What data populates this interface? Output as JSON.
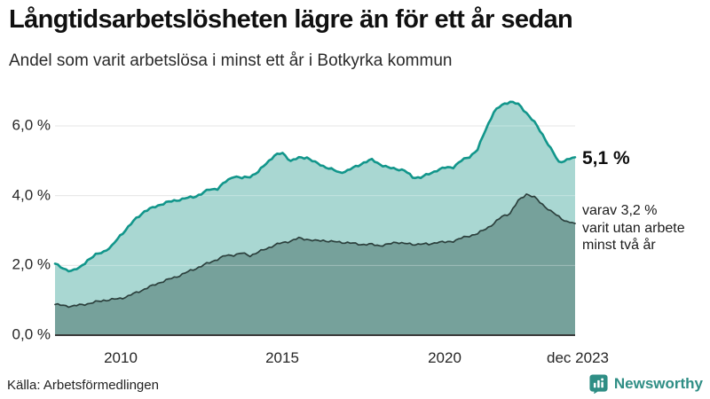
{
  "header": {
    "title": "Långtidsarbetslösheten lägre än för ett år sedan",
    "subtitle": "Andel som varit arbetslösa i minst ett år i Botkyrka kommun"
  },
  "annotations": {
    "latest_value": "5,1 %",
    "secondary_line1": "varav 3,2 %",
    "secondary_line2": "varit utan arbete",
    "secondary_line3": "minst två år"
  },
  "footer": {
    "source": "Källa: Arbetsförmedlingen",
    "brand": "Newsworthy"
  },
  "colors": {
    "total_line": "#12968B",
    "total_fill": "#A9D7D2",
    "two_year_line": "#2C403D",
    "two_year_fill": "#76A19B",
    "gridline": "#DBDBDB",
    "axis": "#3A3A3A",
    "brand": "#2F8E85"
  },
  "chart_data": {
    "type": "area",
    "title": "Långtidsarbetslösheten lägre än för ett år sedan",
    "subtitle": "Andel som varit arbetslösa i minst ett år i Botkyrka kommun",
    "unit": "%",
    "grid": true,
    "x_start": 2008.0,
    "x_end": 2024.0,
    "x_resolution": "quarterly",
    "ylim": [
      0,
      7
    ],
    "yticks": [
      {
        "value": 0,
        "label": "0,0 %"
      },
      {
        "value": 2,
        "label": "2,0 %"
      },
      {
        "value": 4,
        "label": "4,0 %"
      },
      {
        "value": 6,
        "label": "6,0 %"
      }
    ],
    "xticks": [
      {
        "t": 2010.0,
        "label": "2010"
      },
      {
        "t": 2015.0,
        "label": "2015"
      },
      {
        "t": 2020.0,
        "label": "2020"
      },
      {
        "t": 2024.0,
        "label": "dec 2023"
      }
    ],
    "series": [
      {
        "name": "Arbetslösa minst ett år",
        "line_color": "#12968B",
        "fill_color": "#A9D7D2",
        "line_width": 2.6,
        "end_value": 5.1,
        "values": [
          2.05,
          1.9,
          1.85,
          1.92,
          2.15,
          2.3,
          2.4,
          2.55,
          2.85,
          3.1,
          3.35,
          3.55,
          3.65,
          3.75,
          3.82,
          3.87,
          3.92,
          3.96,
          4.05,
          4.18,
          4.2,
          4.4,
          4.56,
          4.5,
          4.55,
          4.68,
          4.93,
          5.15,
          5.22,
          5.0,
          5.08,
          5.1,
          4.95,
          4.85,
          4.76,
          4.66,
          4.72,
          4.83,
          4.95,
          5.03,
          4.9,
          4.8,
          4.77,
          4.72,
          4.53,
          4.52,
          4.62,
          4.73,
          4.8,
          4.82,
          5.0,
          5.12,
          5.32,
          5.9,
          6.4,
          6.6,
          6.7,
          6.62,
          6.38,
          6.1,
          5.75,
          5.35,
          4.96,
          5.03,
          5.1
        ]
      },
      {
        "name": "varav arbetslösa minst två år",
        "line_color": "#2C403D",
        "fill_color": "#76A19B",
        "line_width": 1.7,
        "end_value": 3.2,
        "values": [
          0.88,
          0.85,
          0.83,
          0.86,
          0.9,
          0.95,
          1.0,
          1.02,
          1.05,
          1.12,
          1.22,
          1.32,
          1.42,
          1.52,
          1.6,
          1.68,
          1.78,
          1.88,
          1.98,
          2.08,
          2.18,
          2.28,
          2.3,
          2.35,
          2.28,
          2.38,
          2.48,
          2.58,
          2.65,
          2.7,
          2.78,
          2.75,
          2.7,
          2.72,
          2.68,
          2.67,
          2.65,
          2.62,
          2.6,
          2.6,
          2.57,
          2.6,
          2.67,
          2.63,
          2.6,
          2.62,
          2.6,
          2.67,
          2.66,
          2.7,
          2.78,
          2.85,
          2.91,
          3.05,
          3.2,
          3.4,
          3.5,
          3.85,
          4.05,
          3.95,
          3.75,
          3.55,
          3.4,
          3.25,
          3.2
        ]
      }
    ]
  }
}
